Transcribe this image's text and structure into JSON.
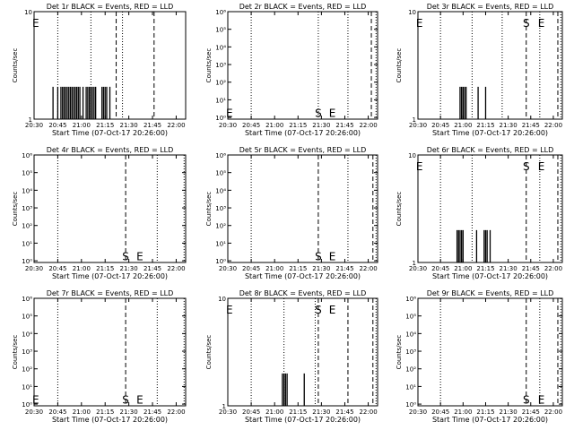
{
  "chart_data": [
    {
      "type": "bar",
      "title": "Det 1r BLACK = Events, RED = LLD",
      "xlabel": "Start Time (07-Oct-17 20:26:00)",
      "ylabel": "Counts/sec",
      "scale": "log",
      "ylim": [
        1,
        10
      ],
      "y_ticks": [
        "1",
        "10"
      ],
      "x_ticks": [
        "20:30",
        "20:45",
        "21:00",
        "21:15",
        "21:30",
        "21:45",
        "22:00"
      ],
      "xlim_min": [
        4,
        100
      ],
      "dotted_lines_min": [
        19,
        40,
        60
      ],
      "dashed_lines_min": [
        56,
        80
      ],
      "markers": [
        {
          "text": "E",
          "x_min": 5,
          "y": 7.2
        }
      ],
      "events": {
        "x_min": [
          16,
          19,
          21,
          22,
          23,
          24,
          25,
          26,
          27,
          28,
          29,
          30,
          31,
          32,
          33,
          35,
          37,
          38,
          39,
          40,
          41,
          42,
          43,
          47,
          48,
          49,
          50,
          52
        ],
        "y": 2
      },
      "lld": {
        "x_min": [],
        "y": []
      }
    },
    {
      "type": "bar",
      "title": "Det 2r BLACK = Events, RED = LLD",
      "xlabel": "Start Time (07-Oct-17 20:26:00)",
      "ylabel": "Counts/sec",
      "scale": "log",
      "ylim": [
        0.8,
        1000000
      ],
      "y_ticks": [
        "10⁰",
        "10¹",
        "10²",
        "10³",
        "10⁴",
        "10⁵",
        "10⁶"
      ],
      "x_ticks": [
        "20:30",
        "20:45",
        "21:00",
        "21:15",
        "21:30",
        "21:45",
        "22:00"
      ],
      "xlim_min": [
        4,
        100
      ],
      "dotted_lines_min": [
        19,
        62,
        81,
        99
      ],
      "dashed_lines_min": [
        96
      ],
      "markers": [
        {
          "text": "E",
          "x_min": 5,
          "y": 1.1
        },
        {
          "text": "S",
          "x_min": 62,
          "y": 1.1
        },
        {
          "text": "E",
          "x_min": 71,
          "y": 1.1
        }
      ],
      "events": {
        "x_min": [],
        "y": 0
      },
      "lld": {
        "x_min": [],
        "y": []
      }
    },
    {
      "type": "bar",
      "title": "Det 3r BLACK = Events, RED = LLD",
      "xlabel": "Start Time (07-Oct-17 20:26:00)",
      "ylabel": "Counts/sec",
      "scale": "log",
      "ylim": [
        1,
        10
      ],
      "y_ticks": [
        "1",
        "10"
      ],
      "x_ticks": [
        "20:30",
        "20:45",
        "21:00",
        "21:15",
        "21:30",
        "21:45",
        "22:00"
      ],
      "xlim_min": [
        4,
        100
      ],
      "dotted_lines_min": [
        19,
        40,
        60,
        85,
        99
      ],
      "dashed_lines_min": [
        76,
        97
      ],
      "markers": [
        {
          "text": "E",
          "x_min": 5,
          "y": 7.2
        },
        {
          "text": "S",
          "x_min": 76,
          "y": 7.2
        },
        {
          "text": "E",
          "x_min": 86,
          "y": 7.2
        }
      ],
      "events": {
        "x_min": [
          32,
          33,
          34,
          35,
          36,
          44,
          49
        ],
        "y": 2
      },
      "lld": {
        "x_min": [],
        "y": []
      }
    },
    {
      "type": "bar",
      "title": "Det 4r BLACK = Events, RED = LLD",
      "xlabel": "Start Time (07-Oct-17 20:26:00)",
      "ylabel": "Counts/sec",
      "scale": "log",
      "ylim": [
        0.8,
        1000000
      ],
      "y_ticks": [
        "10⁰",
        "10¹",
        "10²",
        "10³",
        "10⁴",
        "10⁵",
        "10⁶"
      ],
      "x_ticks": [
        "20:30",
        "20:45",
        "21:00",
        "21:15",
        "21:30",
        "21:45",
        "22:00"
      ],
      "xlim_min": [
        4,
        100
      ],
      "dotted_lines_min": [
        19,
        82,
        99
      ],
      "dashed_lines_min": [
        62
      ],
      "markers": [
        {
          "text": "S",
          "x_min": 62,
          "y": 1.1
        },
        {
          "text": "E",
          "x_min": 71,
          "y": 1.1
        }
      ],
      "events": {
        "x_min": [],
        "y": 0
      },
      "lld": {
        "x_min": [],
        "y": []
      }
    },
    {
      "type": "bar",
      "title": "Det 5r BLACK = Events, RED = LLD",
      "xlabel": "Start Time (07-Oct-17 20:26:00)",
      "ylabel": "Counts/sec",
      "scale": "log",
      "ylim": [
        0.8,
        1000000
      ],
      "y_ticks": [
        "10⁰",
        "10¹",
        "10²",
        "10³",
        "10⁴",
        "10⁵",
        "10⁶"
      ],
      "x_ticks": [
        "20:30",
        "20:45",
        "21:00",
        "21:15",
        "21:30",
        "21:45",
        "22:00"
      ],
      "xlim_min": [
        4,
        100
      ],
      "dotted_lines_min": [
        19,
        81,
        99
      ],
      "dashed_lines_min": [
        62,
        97
      ],
      "markers": [
        {
          "text": "S",
          "x_min": 62,
          "y": 1.1
        },
        {
          "text": "E",
          "x_min": 71,
          "y": 1.1
        }
      ],
      "events": {
        "x_min": [],
        "y": 0
      },
      "lld": {
        "x_min": [],
        "y": []
      }
    },
    {
      "type": "bar",
      "title": "Det 6r BLACK = Events, RED = LLD",
      "xlabel": "Start Time (07-Oct-17 20:26:00)",
      "ylabel": "Counts/sec",
      "scale": "log",
      "ylim": [
        1,
        10
      ],
      "y_ticks": [
        "1",
        "10"
      ],
      "x_ticks": [
        "20:30",
        "20:45",
        "21:00",
        "21:15",
        "21:30",
        "21:45",
        "22:00"
      ],
      "xlim_min": [
        4,
        100
      ],
      "dotted_lines_min": [
        19,
        40,
        85,
        99
      ],
      "dashed_lines_min": [
        76,
        97
      ],
      "markers": [
        {
          "text": "E",
          "x_min": 5,
          "y": 7.2
        },
        {
          "text": "S",
          "x_min": 76,
          "y": 7.2
        },
        {
          "text": "E",
          "x_min": 86,
          "y": 7.2
        }
      ],
      "events": {
        "x_min": [
          30,
          31,
          32,
          33,
          34,
          43,
          48,
          49,
          50,
          52
        ],
        "y": 2
      },
      "lld": {
        "x_min": [],
        "y": []
      }
    },
    {
      "type": "bar",
      "title": "Det 7r BLACK = Events, RED = LLD",
      "xlabel": "Start Time (07-Oct-17 20:26:00)",
      "ylabel": "Counts/sec",
      "scale": "log",
      "ylim": [
        0.8,
        1000000
      ],
      "y_ticks": [
        "10⁰",
        "10¹",
        "10²",
        "10³",
        "10⁴",
        "10⁵",
        "10⁶"
      ],
      "x_ticks": [
        "20:30",
        "20:45",
        "21:00",
        "21:15",
        "21:30",
        "21:45",
        "22:00"
      ],
      "xlim_min": [
        4,
        100
      ],
      "dotted_lines_min": [
        19,
        82,
        99
      ],
      "dashed_lines_min": [
        62
      ],
      "markers": [
        {
          "text": "E",
          "x_min": 5,
          "y": 1.1
        },
        {
          "text": "S",
          "x_min": 62,
          "y": 1.1
        },
        {
          "text": "E",
          "x_min": 71,
          "y": 1.1
        }
      ],
      "events": {
        "x_min": [],
        "y": 0
      },
      "lld": {
        "x_min": [],
        "y": []
      }
    },
    {
      "type": "bar",
      "title": "Det 8r BLACK = Events, RED = LLD",
      "xlabel": "Start Time (07-Oct-17 20:26:00)",
      "ylabel": "Counts/sec",
      "scale": "log",
      "ylim": [
        1,
        10
      ],
      "y_ticks": [
        "1",
        "10"
      ],
      "x_ticks": [
        "20:30",
        "20:45",
        "21:00",
        "21:15",
        "21:30",
        "21:45",
        "22:00"
      ],
      "xlim_min": [
        4,
        100
      ],
      "dotted_lines_min": [
        19,
        40,
        60,
        99
      ],
      "dashed_lines_min": [
        62,
        81,
        97
      ],
      "markers": [
        {
          "text": "E",
          "x_min": 5,
          "y": 7.2
        },
        {
          "text": "S",
          "x_min": 62,
          "y": 7.2
        },
        {
          "text": "E",
          "x_min": 71,
          "y": 7.2
        }
      ],
      "events": {
        "x_min": [
          39,
          40,
          41,
          42,
          53
        ],
        "y": 2
      },
      "lld": {
        "x_min": [],
        "y": []
      }
    },
    {
      "type": "bar",
      "title": "Det 9r BLACK = Events, RED = LLD",
      "xlabel": "Start Time (07-Oct-17 20:26:00)",
      "ylabel": "Counts/sec",
      "scale": "log",
      "ylim": [
        0.8,
        1000000
      ],
      "y_ticks": [
        "10⁰",
        "10¹",
        "10²",
        "10³",
        "10⁴",
        "10⁵",
        "10⁶"
      ],
      "x_ticks": [
        "20:30",
        "20:45",
        "21:00",
        "21:15",
        "21:30",
        "21:45",
        "22:00"
      ],
      "xlim_min": [
        4,
        100
      ],
      "dotted_lines_min": [
        19,
        85,
        99
      ],
      "dashed_lines_min": [
        76,
        97
      ],
      "markers": [
        {
          "text": "S",
          "x_min": 76,
          "y": 1.1
        },
        {
          "text": "E",
          "x_min": 86,
          "y": 1.1
        }
      ],
      "events": {
        "x_min": [],
        "y": 0
      },
      "lld": {
        "x_min": [],
        "y": []
      }
    }
  ],
  "colors": {
    "events": "#000000",
    "lld": "#ff0000",
    "axes": "#000000",
    "background": "#ffffff"
  }
}
